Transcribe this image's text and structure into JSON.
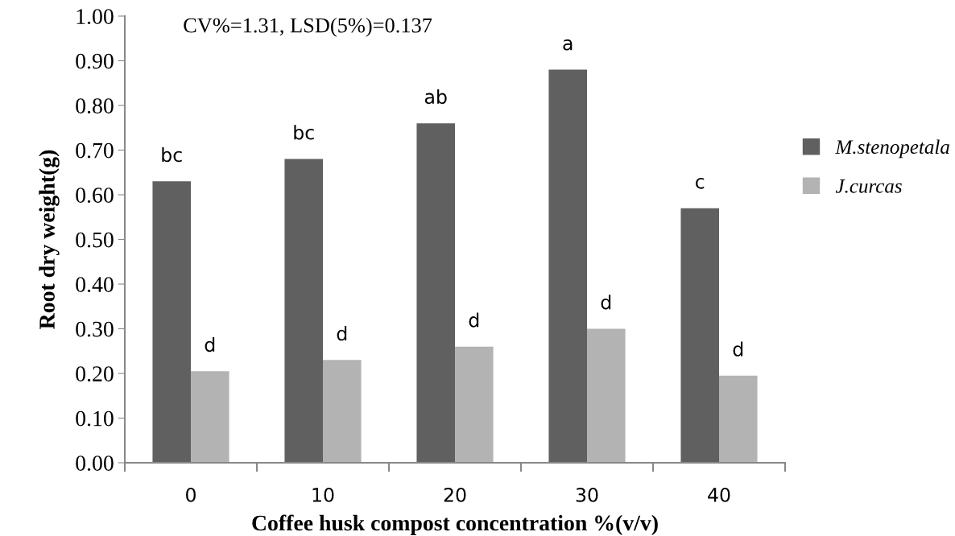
{
  "chart_data": {
    "type": "bar",
    "xlabel": "Coffee husk compost concentration %(v/v)",
    "ylabel": "Root dry weight(g)",
    "categories": [
      "0",
      "10",
      "20",
      "30",
      "40"
    ],
    "series": [
      {
        "name": "M.stenopetala",
        "color": "#606060",
        "values": [
          0.63,
          0.68,
          0.76,
          0.88,
          0.57
        ],
        "value_labels": [
          "bc",
          "bc",
          "ab",
          "a",
          "c"
        ]
      },
      {
        "name": "J.curcas",
        "color": "#b3b3b3",
        "values": [
          0.205,
          0.23,
          0.26,
          0.3,
          0.195
        ],
        "value_labels": [
          "d",
          "d",
          "d",
          "d",
          "d"
        ]
      }
    ],
    "ylim": [
      0,
      1
    ],
    "yticks": [
      {
        "value": 0,
        "label": "0.00"
      },
      {
        "value": 0.1,
        "label": "0.10"
      },
      {
        "value": 0.2,
        "label": "0.20"
      },
      {
        "value": 0.3,
        "label": "0.30"
      },
      {
        "value": 0.4,
        "label": "0.40"
      },
      {
        "value": 0.5,
        "label": "0.50"
      },
      {
        "value": 0.6,
        "label": "0.60"
      },
      {
        "value": 0.7,
        "label": "0.70"
      },
      {
        "value": 0.8,
        "label": "0.80"
      },
      {
        "value": 0.9,
        "label": "0.90"
      },
      {
        "value": 1,
        "label": "1.00"
      }
    ],
    "annotations": [
      "CV%=1.31, LSD(5%)=0.137"
    ],
    "legend": "right",
    "grid": false
  }
}
